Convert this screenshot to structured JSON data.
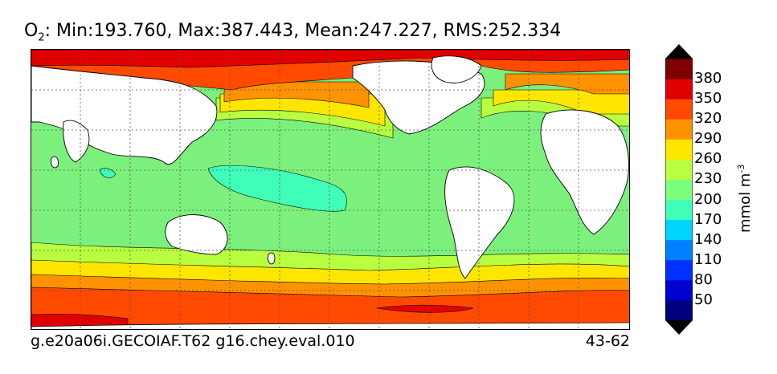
{
  "title": {
    "species": "O",
    "subscript": "2",
    "stats": ": Min:193.760, Max:387.443, Mean:247.227, RMS:252.334"
  },
  "footer": {
    "run": "g.e20a06i.GECOIAF.T62 g16.chey.eval.010",
    "depth": "43-62"
  },
  "colorbar": {
    "units": "mmol m",
    "units_exp": "-3",
    "ticks": [
      "50",
      "80",
      "110",
      "140",
      "170",
      "200",
      "230",
      "260",
      "290",
      "320",
      "350",
      "380"
    ],
    "colors": [
      "#00007f",
      "#0000d0",
      "#0030ff",
      "#0080ff",
      "#00d4ff",
      "#40ffb8",
      "#7cff7c",
      "#b8ff40",
      "#ffe600",
      "#ff9200",
      "#ff4a00",
      "#e00000",
      "#7f0000"
    ],
    "under_color": "#000000",
    "over_color": "#000000"
  },
  "map_colors": {
    "c200": "#7cf07c",
    "c170": "#40ffb8",
    "c230": "#b8ff40",
    "c260": "#ffe600",
    "c290": "#ff9200",
    "c320": "#ff4a00",
    "c350": "#e00000",
    "land": "#ffffff"
  }
}
